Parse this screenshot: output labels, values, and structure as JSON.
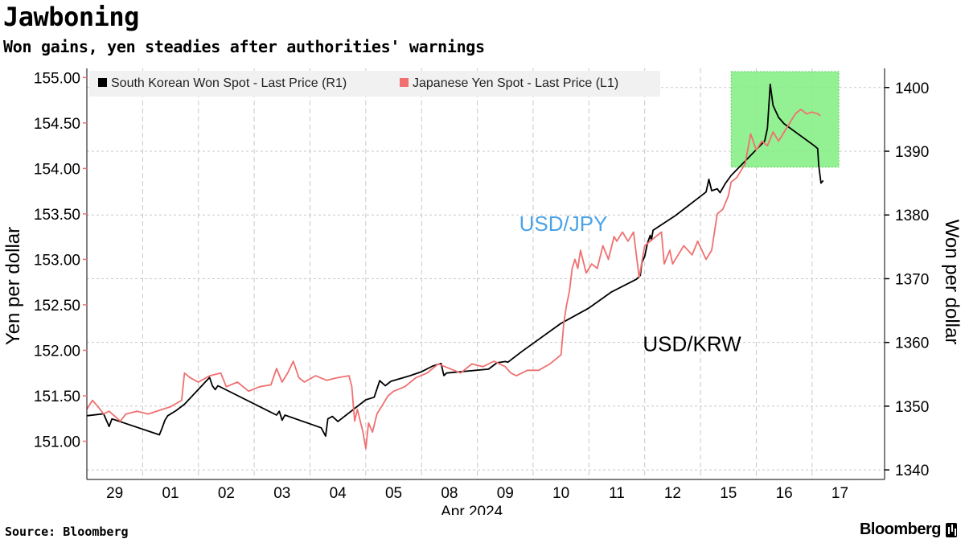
{
  "header": {
    "title": "Jawboning",
    "subtitle": "Won gains, yen steadies after authorities' warnings"
  },
  "footer": {
    "source": "Source: Bloomberg",
    "brand": "Bloomberg"
  },
  "colors": {
    "won": "#000000",
    "yen": "#f07070",
    "highlight": "#80ee80",
    "jpy_annotation": "#4aa3e8",
    "grid": "#c8c8c8"
  },
  "chart_data": {
    "type": "line",
    "x_unit": "trading session (29 Mar - 17 Apr 2024)",
    "x_ticks": [
      {
        "x": 0,
        "label": "29"
      },
      {
        "x": 1,
        "label": "01"
      },
      {
        "x": 2,
        "label": "02"
      },
      {
        "x": 3,
        "label": "03"
      },
      {
        "x": 4,
        "label": "04"
      },
      {
        "x": 5,
        "label": "05"
      },
      {
        "x": 6,
        "label": "08"
      },
      {
        "x": 7,
        "label": "09"
      },
      {
        "x": 8,
        "label": "10"
      },
      {
        "x": 9,
        "label": "11"
      },
      {
        "x": 10,
        "label": "12"
      },
      {
        "x": 11,
        "label": "15"
      },
      {
        "x": 12,
        "label": "16"
      },
      {
        "x": 13,
        "label": "17"
      }
    ],
    "xlim": [
      -0.5,
      13.8
    ],
    "xlabel": "Apr 2024",
    "left_axis": {
      "label": "Yen per dollar",
      "lim": [
        150.58,
        155.1
      ],
      "ticks": [
        151.0,
        151.5,
        152.0,
        152.5,
        153.0,
        153.5,
        154.0,
        154.5,
        155.0
      ],
      "tick_labels": [
        "151.00",
        "151.50",
        "152.00",
        "152.50",
        "153.00",
        "153.50",
        "154.00",
        "154.50",
        "155.00"
      ]
    },
    "right_axis": {
      "label": "Won per dollar",
      "lim": [
        1338.5,
        1403.0
      ],
      "ticks": [
        1340,
        1350,
        1360,
        1370,
        1380,
        1390,
        1400
      ],
      "tick_labels": [
        "1340",
        "1350",
        "1360",
        "1370",
        "1380",
        "1390",
        "1400"
      ]
    },
    "legend": {
      "placement": "top-left",
      "entries": [
        "South Korean Won Spot - Last Price (R1)",
        "Japanese Yen Spot - Last Price (L1)"
      ]
    },
    "annotations": [
      {
        "text": "USD/JPY",
        "x": 8.0,
        "y_left": 153.4
      },
      {
        "text": "USD/KRW",
        "x": 10.0,
        "y_left": 152.08
      }
    ],
    "highlight_box": {
      "x0": 11.05,
      "x1": 12.98,
      "y0_right": 1387.5,
      "y1_right": 1402.5
    },
    "grid": true,
    "series": [
      {
        "name": "South Korean Won Spot - Last Price (R1)",
        "axis": "right",
        "points": [
          [
            -0.5,
            1348.5
          ],
          [
            -0.3,
            1348.7
          ],
          [
            -0.2,
            1348.8
          ],
          [
            -0.1,
            1346.8
          ],
          [
            -0.05,
            1348.0
          ],
          [
            0.8,
            1345.5
          ],
          [
            0.85,
            1346.6
          ],
          [
            0.9,
            1347.8
          ],
          [
            0.95,
            1348.5
          ],
          [
            1.1,
            1349.3
          ],
          [
            1.25,
            1350.3
          ],
          [
            1.7,
            1354.5
          ],
          [
            1.75,
            1353.2
          ],
          [
            1.8,
            1352.6
          ],
          [
            1.85,
            1353.2
          ],
          [
            2.9,
            1348.6
          ],
          [
            2.95,
            1349.2
          ],
          [
            3.0,
            1347.8
          ],
          [
            3.05,
            1348.6
          ],
          [
            3.7,
            1346.6
          ],
          [
            3.78,
            1345.3
          ],
          [
            3.82,
            1348.0
          ],
          [
            3.9,
            1348.4
          ],
          [
            4.0,
            1347.6
          ],
          [
            4.5,
            1351.0
          ],
          [
            4.65,
            1351.4
          ],
          [
            4.75,
            1354.0
          ],
          [
            4.85,
            1353.2
          ],
          [
            4.95,
            1353.9
          ],
          [
            5.3,
            1354.8
          ],
          [
            5.5,
            1355.4
          ],
          [
            5.7,
            1356.3
          ],
          [
            5.85,
            1356.7
          ],
          [
            5.9,
            1354.8
          ],
          [
            5.95,
            1355.2
          ],
          [
            6.7,
            1355.8
          ],
          [
            6.85,
            1356.8
          ],
          [
            7.0,
            1357.0
          ],
          [
            7.05,
            1356.9
          ],
          [
            7.3,
            1358.6
          ],
          [
            8.0,
            1363.0
          ],
          [
            8.5,
            1365.4
          ],
          [
            8.9,
            1367.9
          ],
          [
            9.35,
            1369.9
          ],
          [
            9.42,
            1370.5
          ],
          [
            9.45,
            1372.5
          ],
          [
            9.5,
            1373.5
          ],
          [
            9.55,
            1375.6
          ],
          [
            9.6,
            1376.8
          ],
          [
            9.62,
            1376.0
          ],
          [
            9.65,
            1377.6
          ],
          [
            10.05,
            1379.9
          ],
          [
            10.6,
            1383.6
          ],
          [
            10.65,
            1385.6
          ],
          [
            10.7,
            1383.8
          ],
          [
            10.8,
            1384.1
          ],
          [
            10.85,
            1383.5
          ],
          [
            10.95,
            1385.0
          ],
          [
            11.05,
            1386.2
          ],
          [
            11.65,
            1391.6
          ],
          [
            11.7,
            1393.6
          ],
          [
            11.75,
            1400.5
          ],
          [
            11.8,
            1397.2
          ],
          [
            11.9,
            1395.3
          ],
          [
            12.0,
            1394.3
          ],
          [
            12.55,
            1390.8
          ],
          [
            12.6,
            1390.4
          ],
          [
            12.62,
            1387.8
          ],
          [
            12.66,
            1385.0
          ],
          [
            12.7,
            1385.4
          ]
        ]
      },
      {
        "name": "Japanese Yen Spot - Last Price (L1)",
        "axis": "left",
        "points": [
          [
            -0.5,
            151.35
          ],
          [
            -0.4,
            151.45
          ],
          [
            -0.3,
            151.38
          ],
          [
            -0.2,
            151.3
          ],
          [
            -0.1,
            151.33
          ],
          [
            0.1,
            151.22
          ],
          [
            0.2,
            151.3
          ],
          [
            0.4,
            151.33
          ],
          [
            0.6,
            151.3
          ],
          [
            0.8,
            151.34
          ],
          [
            1.0,
            151.38
          ],
          [
            1.2,
            151.45
          ],
          [
            1.25,
            151.75
          ],
          [
            1.35,
            151.7
          ],
          [
            1.5,
            151.65
          ],
          [
            1.7,
            151.72
          ],
          [
            1.9,
            151.75
          ],
          [
            2.0,
            151.6
          ],
          [
            2.2,
            151.65
          ],
          [
            2.4,
            151.55
          ],
          [
            2.6,
            151.6
          ],
          [
            2.8,
            151.62
          ],
          [
            2.9,
            151.8
          ],
          [
            3.0,
            151.65
          ],
          [
            3.1,
            151.75
          ],
          [
            3.2,
            151.88
          ],
          [
            3.3,
            151.7
          ],
          [
            3.4,
            151.65
          ],
          [
            3.6,
            151.72
          ],
          [
            3.8,
            151.67
          ],
          [
            4.0,
            151.7
          ],
          [
            4.2,
            151.72
          ],
          [
            4.25,
            151.6
          ],
          [
            4.3,
            151.22
          ],
          [
            4.35,
            151.35
          ],
          [
            4.45,
            151.1
          ],
          [
            4.5,
            150.92
          ],
          [
            4.55,
            151.2
          ],
          [
            4.62,
            151.1
          ],
          [
            4.7,
            151.3
          ],
          [
            4.8,
            151.4
          ],
          [
            4.9,
            151.5
          ],
          [
            5.0,
            151.55
          ],
          [
            5.2,
            151.6
          ],
          [
            5.4,
            151.7
          ],
          [
            5.6,
            151.75
          ],
          [
            5.8,
            151.85
          ],
          [
            6.0,
            151.8
          ],
          [
            6.2,
            151.75
          ],
          [
            6.4,
            151.85
          ],
          [
            6.6,
            151.82
          ],
          [
            6.8,
            151.88
          ],
          [
            7.0,
            151.82
          ],
          [
            7.1,
            151.75
          ],
          [
            7.2,
            151.72
          ],
          [
            7.4,
            151.78
          ],
          [
            7.6,
            151.78
          ],
          [
            7.8,
            151.85
          ],
          [
            8.0,
            151.95
          ],
          [
            8.05,
            152.3
          ],
          [
            8.1,
            152.5
          ],
          [
            8.15,
            152.65
          ],
          [
            8.2,
            152.9
          ],
          [
            8.25,
            153.0
          ],
          [
            8.3,
            152.9
          ],
          [
            8.35,
            153.1
          ],
          [
            8.45,
            152.85
          ],
          [
            8.55,
            152.95
          ],
          [
            8.65,
            152.9
          ],
          [
            8.75,
            153.15
          ],
          [
            8.85,
            153.0
          ],
          [
            8.95,
            153.25
          ],
          [
            9.0,
            153.2
          ],
          [
            9.1,
            153.3
          ],
          [
            9.2,
            153.2
          ],
          [
            9.3,
            153.3
          ],
          [
            9.4,
            152.8
          ],
          [
            9.5,
            153.15
          ],
          [
            9.6,
            153.2
          ],
          [
            9.7,
            153.25
          ],
          [
            9.8,
            153.3
          ],
          [
            9.85,
            152.95
          ],
          [
            9.95,
            153.1
          ],
          [
            10.0,
            152.95
          ],
          [
            10.1,
            153.05
          ],
          [
            10.2,
            153.15
          ],
          [
            10.35,
            153.05
          ],
          [
            10.45,
            153.2
          ],
          [
            10.6,
            153.0
          ],
          [
            10.7,
            153.1
          ],
          [
            10.8,
            153.5
          ],
          [
            10.9,
            153.55
          ],
          [
            11.0,
            153.7
          ],
          [
            11.05,
            153.85
          ],
          [
            11.15,
            153.9
          ],
          [
            11.3,
            154.05
          ],
          [
            11.4,
            154.38
          ],
          [
            11.5,
            154.2
          ],
          [
            11.6,
            154.3
          ],
          [
            11.7,
            154.25
          ],
          [
            11.8,
            154.4
          ],
          [
            11.9,
            154.3
          ],
          [
            12.0,
            154.4
          ],
          [
            12.1,
            154.5
          ],
          [
            12.2,
            154.6
          ],
          [
            12.3,
            154.65
          ],
          [
            12.4,
            154.6
          ],
          [
            12.5,
            154.62
          ],
          [
            12.6,
            154.6
          ],
          [
            12.65,
            154.58
          ]
        ]
      }
    ]
  }
}
